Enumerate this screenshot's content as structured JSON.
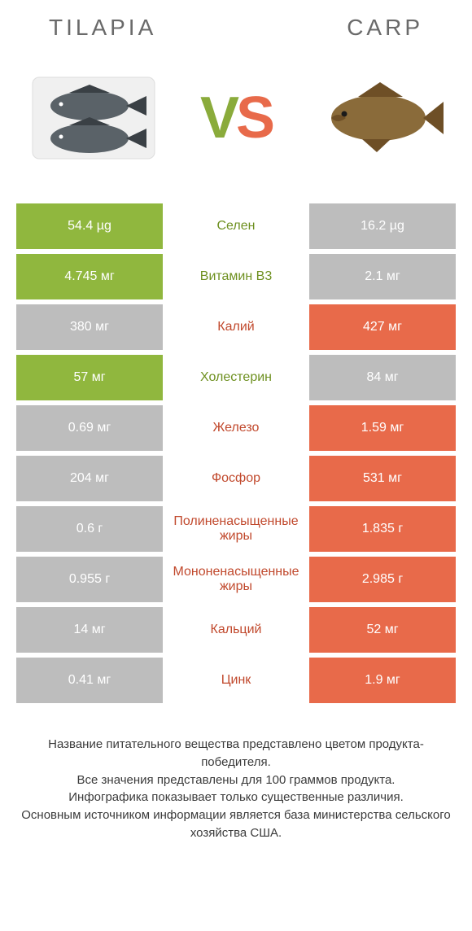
{
  "colors": {
    "green": "#90b73e",
    "orange": "#e86a4a",
    "grey": "#bdbdbd",
    "nutrient_green": "#6e9020",
    "nutrient_orange": "#c1492d"
  },
  "header": {
    "left": "TILAPIA",
    "right": "CARP",
    "vs_v": "V",
    "vs_s": "S"
  },
  "rows": [
    {
      "left_val": "54.4 µg",
      "nutrient": "Селен",
      "right_val": "16.2 µg",
      "winner": "left"
    },
    {
      "left_val": "4.745 мг",
      "nutrient": "Витамин B3",
      "right_val": "2.1 мг",
      "winner": "left"
    },
    {
      "left_val": "380 мг",
      "nutrient": "Калий",
      "right_val": "427 мг",
      "winner": "right"
    },
    {
      "left_val": "57 мг",
      "nutrient": "Холестерин",
      "right_val": "84 мг",
      "winner": "left"
    },
    {
      "left_val": "0.69 мг",
      "nutrient": "Железо",
      "right_val": "1.59 мг",
      "winner": "right"
    },
    {
      "left_val": "204 мг",
      "nutrient": "Фосфор",
      "right_val": "531 мг",
      "winner": "right"
    },
    {
      "left_val": "0.6 г",
      "nutrient": "Полиненасыщенные жиры",
      "right_val": "1.835 г",
      "winner": "right"
    },
    {
      "left_val": "0.955 г",
      "nutrient": "Мононенасыщенные жиры",
      "right_val": "2.985 г",
      "winner": "right"
    },
    {
      "left_val": "14 мг",
      "nutrient": "Кальций",
      "right_val": "52 мг",
      "winner": "right"
    },
    {
      "left_val": "0.41 мг",
      "nutrient": "Цинк",
      "right_val": "1.9 мг",
      "winner": "right"
    }
  ],
  "footnote": {
    "l1": "Название питательного вещества представлено цветом продукта-победителя.",
    "l2": "Все значения представлены для 100 граммов продукта.",
    "l3": "Инфографика показывает только существенные различия.",
    "l4": "Основным источником информации является база министерства сельского хозяйства США."
  }
}
